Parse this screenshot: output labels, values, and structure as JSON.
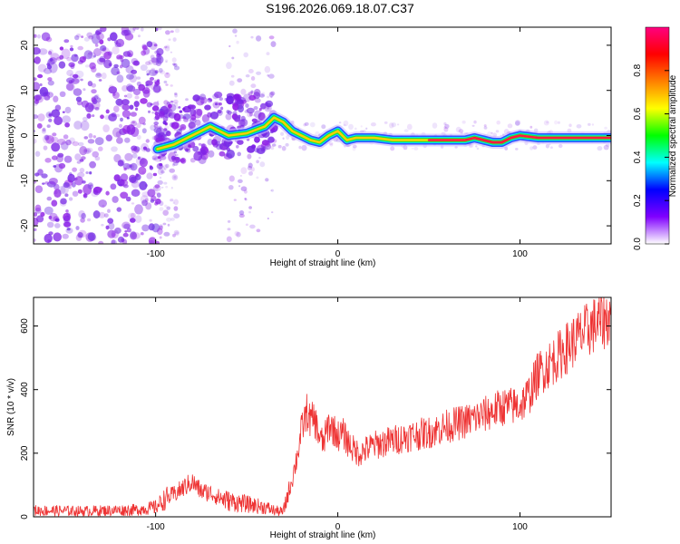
{
  "title": "S196.2026.069.18.07.C37",
  "chart_data": [
    {
      "type": "heatmap",
      "xlabel": "Height of straight line (km)",
      "ylabel": "Frequency (Hz)",
      "xlim": [
        -167,
        150
      ],
      "ylim": [
        -24,
        24
      ],
      "xticks": [
        -100,
        0,
        100
      ],
      "yticks": [
        -20,
        -10,
        0,
        10,
        20
      ],
      "grid": false,
      "ridge_line": {
        "x": [
          -99,
          -90,
          -80,
          -70,
          -60,
          -50,
          -40,
          -35,
          -30,
          -25,
          -20,
          -15,
          -10,
          -5,
          0,
          5,
          10,
          20,
          30,
          40,
          50,
          60,
          70,
          75,
          80,
          85,
          90,
          95,
          100,
          110,
          120,
          130,
          140,
          150
        ],
        "y": [
          -3,
          -2,
          0,
          2,
          0,
          0.5,
          2,
          4,
          3,
          1,
          0,
          -1,
          -1.5,
          0,
          1,
          -1,
          -0.5,
          -0.5,
          -1,
          -1,
          -1,
          -1,
          -1,
          -0.5,
          -1,
          -1.5,
          -1.5,
          -0.5,
          0,
          -0.5,
          -0.5,
          -0.5,
          -0.5,
          -0.5
        ]
      },
      "colorbar": {
        "label": "Normalized spectral amplitude",
        "range": [
          0,
          1
        ],
        "ticks": [
          "0.0",
          "0.2",
          "0.4",
          "0.6",
          "0.8"
        ],
        "colors": [
          "#ffffff",
          "#8000ff",
          "#0000ff",
          "#00ffff",
          "#00ff00",
          "#ffff00",
          "#ff8000",
          "#ff0000",
          "#ff0080"
        ]
      }
    },
    {
      "type": "line",
      "xlabel": "Height of straight line (km)",
      "ylabel": "SNR (10 * v/v)",
      "xlim": [
        -167,
        150
      ],
      "ylim": [
        0,
        690
      ],
      "xticks": [
        -100,
        0,
        100
      ],
      "yticks": [
        0,
        200,
        400,
        600
      ],
      "grid": false,
      "color": "#ee3333",
      "series": [
        {
          "x": [
            -167,
            -140,
            -110,
            -100,
            -95,
            -90,
            -85,
            -80,
            -75,
            -70,
            -65,
            -60,
            -55,
            -50,
            -45,
            -40,
            -35,
            -30,
            -25,
            -22,
            -20,
            -17,
            -15,
            -13,
            -10,
            -8,
            -5,
            -3,
            0,
            3,
            5,
            8,
            10,
            12,
            15,
            20,
            30,
            40,
            50,
            60,
            70,
            80,
            90,
            100,
            105,
            110,
            120,
            130,
            140,
            150
          ],
          "y": [
            20,
            18,
            22,
            30,
            55,
            70,
            90,
            110,
            80,
            75,
            60,
            50,
            45,
            40,
            35,
            30,
            20,
            15,
            120,
            200,
            270,
            330,
            300,
            310,
            250,
            230,
            290,
            280,
            255,
            260,
            240,
            215,
            205,
            200,
            210,
            225,
            240,
            255,
            265,
            285,
            300,
            320,
            345,
            350,
            385,
            450,
            500,
            555,
            600,
            630
          ]
        }
      ]
    }
  ]
}
